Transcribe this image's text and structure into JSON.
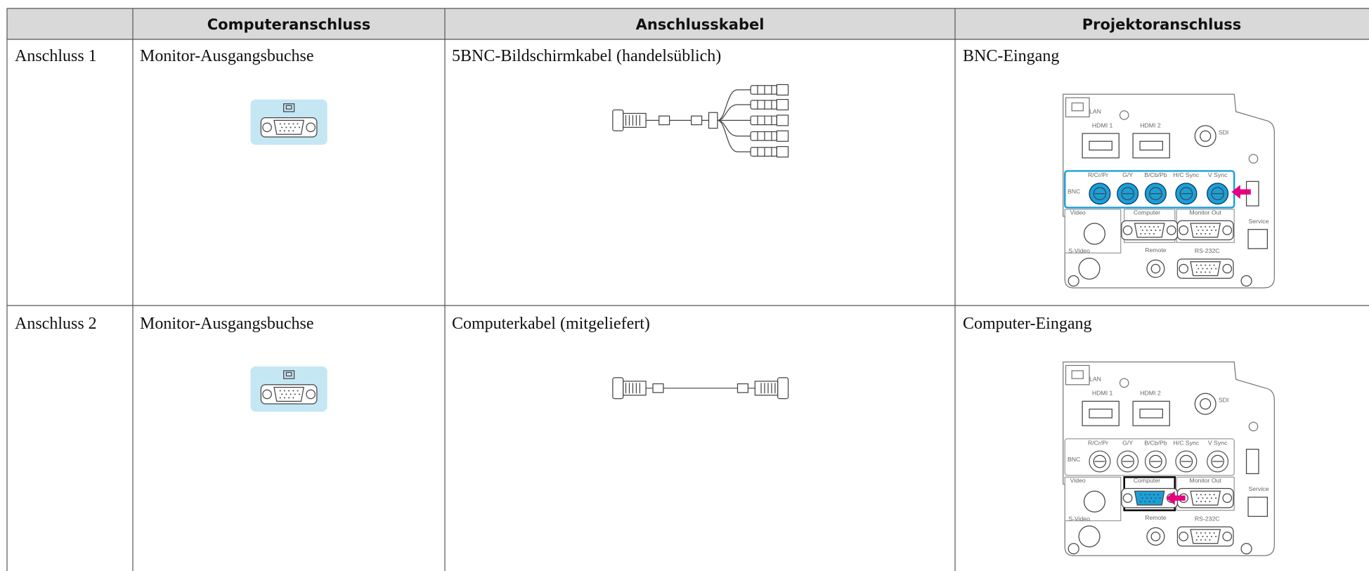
{
  "table": {
    "headers": [
      "Computeranschluss",
      "Anschlusskabel",
      "Projektoranschluss"
    ],
    "rows": [
      [
        "Anschluss 1",
        "Monitor-Ausgangsbuchse",
        "5BNC-Bildschirmkabel (handelsüblich)",
        "BNC-Eingang"
      ],
      [
        "Anschluss 2",
        "Monitor-Ausgangsbuchse",
        "Computerkabel (mitgeliefert)",
        "Computer-Eingang"
      ]
    ]
  },
  "panel": {
    "labels": [
      "LAN",
      "HDMI 1",
      "HDMI 2",
      "SDI",
      "R/Cr/Pr",
      "G/Y",
      "B/Cb/Pb",
      "H/C Sync",
      "V Sync",
      "BNC",
      "Video",
      "Computer",
      "Monitor Out",
      "Service",
      "S-Video",
      "Remote",
      "RS-232C"
    ]
  }
}
